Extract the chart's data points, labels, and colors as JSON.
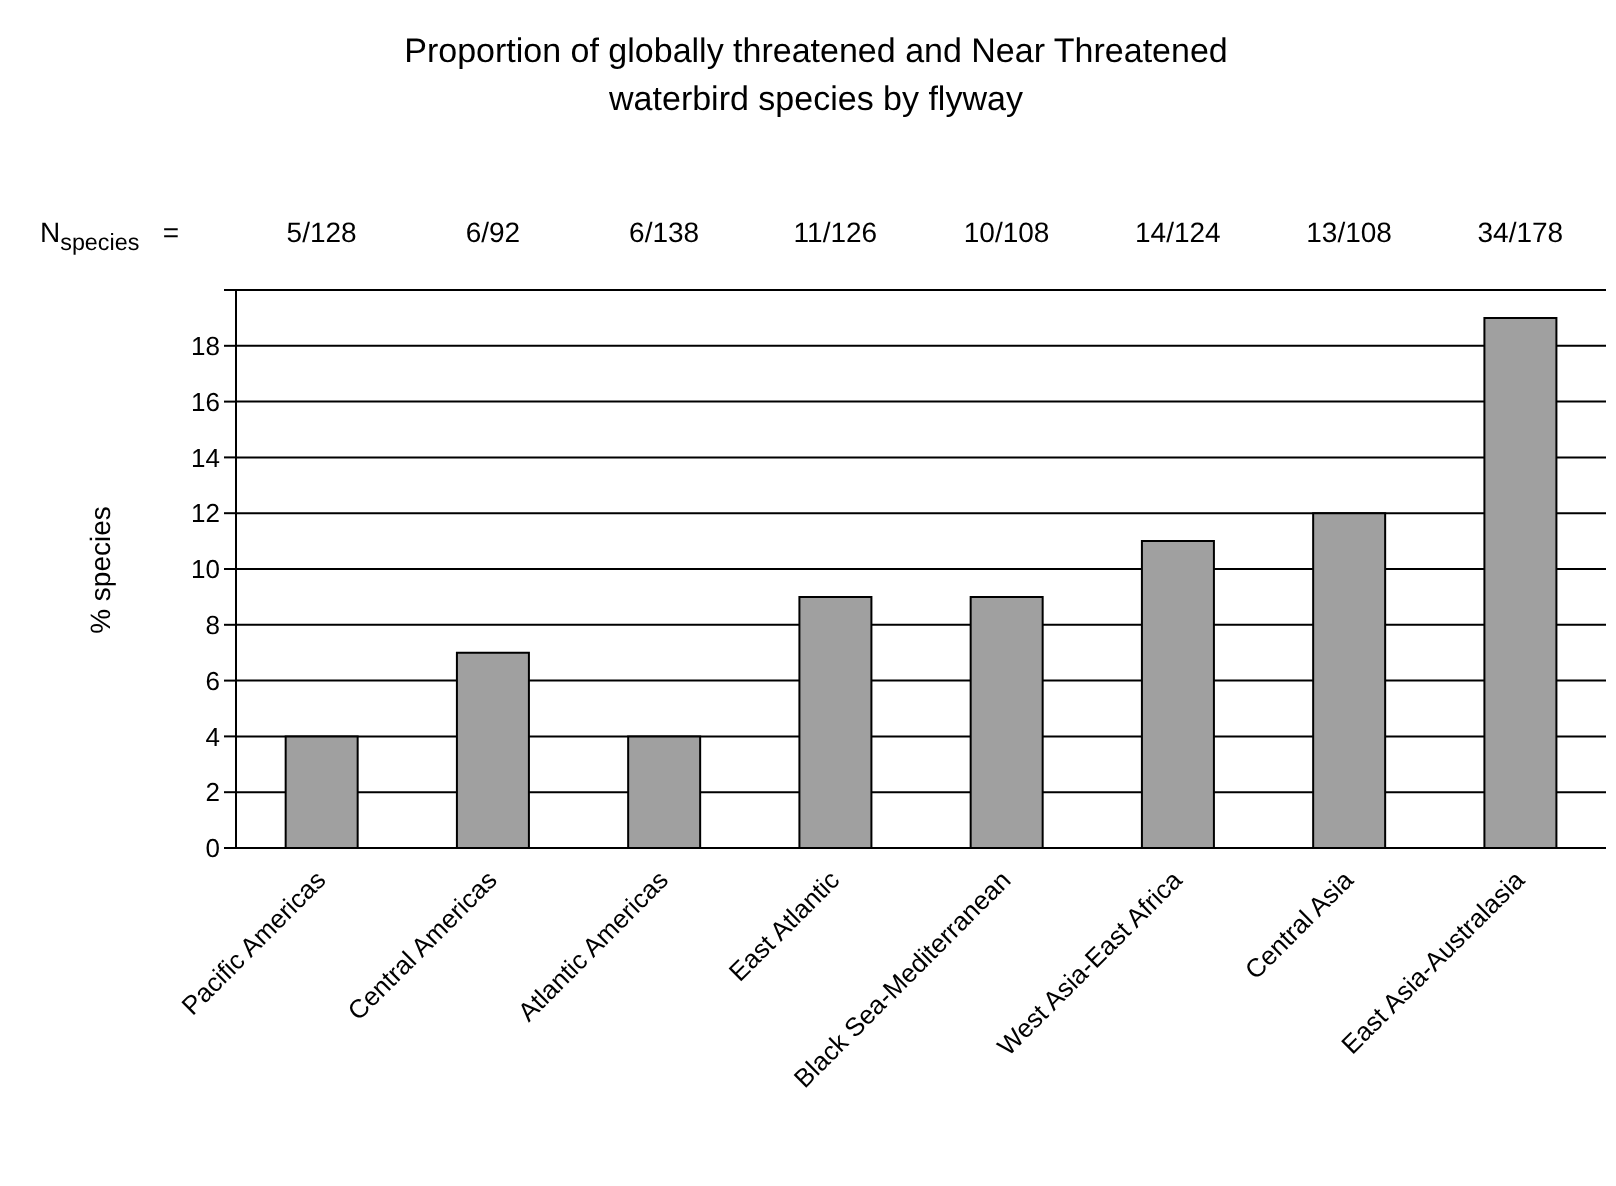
{
  "chart_data": {
    "type": "bar",
    "title": "Proportion of globally threatened and Near Threatened\nwaterbird species by flyway",
    "ylabel": "% species",
    "categories": [
      "Pacific Americas",
      "Central Americas",
      "Atlantic Americas",
      "East Atlantic",
      "Black Sea-Mediterranean",
      "West Asia-East Africa",
      "Central Asia",
      "East Asia-Australasia"
    ],
    "values": [
      4,
      7,
      4,
      9,
      9,
      11,
      12,
      19
    ],
    "color": "#a0a0a0",
    "ylim": [
      0,
      20
    ],
    "yticks": [
      0,
      2,
      4,
      6,
      8,
      10,
      12,
      14,
      16,
      18,
      {
        "value": 20,
        "label": null
      }
    ],
    "grid": "y",
    "legend": false,
    "annotations": [
      "N$_{species}$   =",
      "5/128",
      "6/92",
      "6/138",
      "11/126",
      "10/108",
      "14/124",
      "13/108",
      "34/178"
    ]
  }
}
